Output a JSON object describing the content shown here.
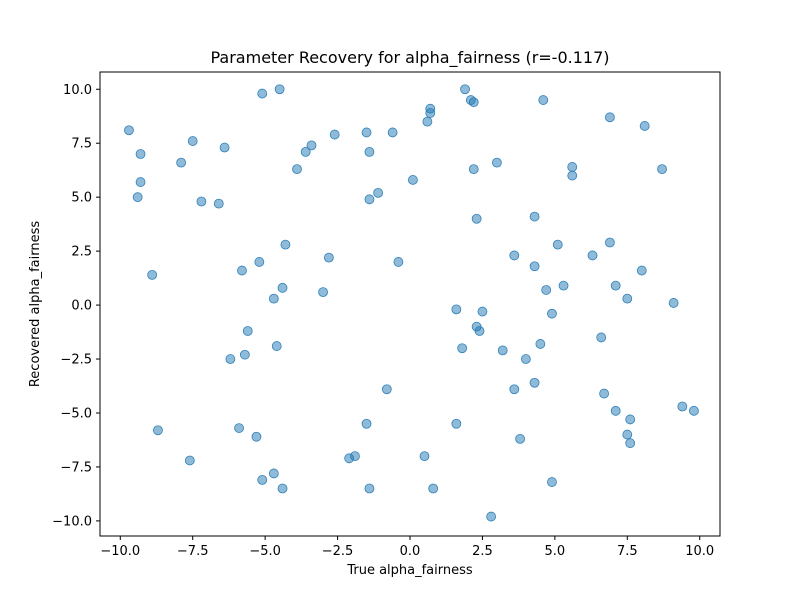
{
  "chart_data": {
    "type": "scatter",
    "title": "Parameter Recovery for alpha_fairness (r=-0.117)",
    "xlabel": "True alpha_fairness",
    "ylabel": "Recovered alpha_fairness",
    "xlim": [
      -10.7,
      10.7
    ],
    "ylim": [
      -10.7,
      10.8
    ],
    "xticks": [
      -10.0,
      -7.5,
      -5.0,
      -2.5,
      0.0,
      2.5,
      5.0,
      7.5,
      10.0
    ],
    "xtick_labels": [
      "−10.0",
      "−7.5",
      "−5.0",
      "−2.5",
      "0.0",
      "2.5",
      "5.0",
      "7.5",
      "10.0"
    ],
    "yticks": [
      -10.0,
      -7.5,
      -5.0,
      -2.5,
      0.0,
      2.5,
      5.0,
      7.5,
      10.0
    ],
    "ytick_labels": [
      "−10.0",
      "−7.5",
      "−5.0",
      "−2.5",
      "0.0",
      "2.5",
      "5.0",
      "7.5",
      "10.0"
    ],
    "grid": false,
    "point_color": "#1f77b4",
    "point_alpha": 0.5,
    "points": [
      {
        "x": -9.7,
        "y": 8.1
      },
      {
        "x": -9.3,
        "y": 7.0
      },
      {
        "x": -9.3,
        "y": 5.7
      },
      {
        "x": -9.4,
        "y": 5.0
      },
      {
        "x": -8.9,
        "y": 1.4
      },
      {
        "x": -8.7,
        "y": -5.8
      },
      {
        "x": -7.9,
        "y": 6.6
      },
      {
        "x": -7.5,
        "y": 7.6
      },
      {
        "x": -7.6,
        "y": -7.2
      },
      {
        "x": -7.2,
        "y": 4.8
      },
      {
        "x": -6.6,
        "y": 4.7
      },
      {
        "x": -6.4,
        "y": 7.3
      },
      {
        "x": -6.2,
        "y": -2.5
      },
      {
        "x": -5.8,
        "y": 1.6
      },
      {
        "x": -5.9,
        "y": -5.7
      },
      {
        "x": -5.7,
        "y": -2.3
      },
      {
        "x": -5.6,
        "y": -1.2
      },
      {
        "x": -5.2,
        "y": 2.0
      },
      {
        "x": -5.3,
        "y": -6.1
      },
      {
        "x": -5.1,
        "y": 9.8
      },
      {
        "x": -5.1,
        "y": -8.1
      },
      {
        "x": -4.7,
        "y": 0.3
      },
      {
        "x": -4.7,
        "y": -7.8
      },
      {
        "x": -4.6,
        "y": -1.9
      },
      {
        "x": -4.5,
        "y": 10.0
      },
      {
        "x": -4.4,
        "y": 0.8
      },
      {
        "x": -4.3,
        "y": 2.8
      },
      {
        "x": -4.4,
        "y": -8.5
      },
      {
        "x": -3.9,
        "y": 6.3
      },
      {
        "x": -3.6,
        "y": 7.1
      },
      {
        "x": -3.4,
        "y": 7.4
      },
      {
        "x": -3.0,
        "y": 0.6
      },
      {
        "x": -2.8,
        "y": 2.2
      },
      {
        "x": -2.6,
        "y": 7.9
      },
      {
        "x": -2.1,
        "y": -7.1
      },
      {
        "x": -1.9,
        "y": -7.0
      },
      {
        "x": -1.5,
        "y": 8.0
      },
      {
        "x": -1.4,
        "y": 7.1
      },
      {
        "x": -1.4,
        "y": 4.9
      },
      {
        "x": -1.5,
        "y": -5.5
      },
      {
        "x": -1.4,
        "y": -8.5
      },
      {
        "x": -1.1,
        "y": 5.2
      },
      {
        "x": -0.8,
        "y": -3.9
      },
      {
        "x": -0.6,
        "y": 8.0
      },
      {
        "x": -0.4,
        "y": 2.0
      },
      {
        "x": 0.1,
        "y": 5.8
      },
      {
        "x": 0.5,
        "y": -7.0
      },
      {
        "x": 0.6,
        "y": 8.5
      },
      {
        "x": 0.7,
        "y": 9.1
      },
      {
        "x": 0.7,
        "y": 8.9
      },
      {
        "x": 0.8,
        "y": -8.5
      },
      {
        "x": 1.6,
        "y": -0.2
      },
      {
        "x": 1.6,
        "y": -5.5
      },
      {
        "x": 1.8,
        "y": -2.0
      },
      {
        "x": 1.9,
        "y": 10.0
      },
      {
        "x": 2.1,
        "y": 9.5
      },
      {
        "x": 2.2,
        "y": 9.4
      },
      {
        "x": 2.2,
        "y": 6.3
      },
      {
        "x": 2.3,
        "y": 4.0
      },
      {
        "x": 2.3,
        "y": -1.0
      },
      {
        "x": 2.4,
        "y": -1.2
      },
      {
        "x": 2.5,
        "y": -0.3
      },
      {
        "x": 2.8,
        "y": -9.8
      },
      {
        "x": 3.0,
        "y": 6.6
      },
      {
        "x": 3.2,
        "y": -2.1
      },
      {
        "x": 3.6,
        "y": 2.3
      },
      {
        "x": 3.6,
        "y": -3.9
      },
      {
        "x": 3.8,
        "y": -6.2
      },
      {
        "x": 4.0,
        "y": -2.5
      },
      {
        "x": 4.3,
        "y": 4.1
      },
      {
        "x": 4.3,
        "y": 1.8
      },
      {
        "x": 4.3,
        "y": -3.6
      },
      {
        "x": 4.5,
        "y": -1.8
      },
      {
        "x": 4.6,
        "y": 9.5
      },
      {
        "x": 4.7,
        "y": 0.7
      },
      {
        "x": 4.9,
        "y": -0.4
      },
      {
        "x": 4.9,
        "y": -8.2
      },
      {
        "x": 5.1,
        "y": 2.8
      },
      {
        "x": 5.3,
        "y": 0.9
      },
      {
        "x": 5.6,
        "y": 6.4
      },
      {
        "x": 5.6,
        "y": 6.0
      },
      {
        "x": 6.3,
        "y": 2.3
      },
      {
        "x": 6.6,
        "y": -1.5
      },
      {
        "x": 6.7,
        "y": -4.1
      },
      {
        "x": 6.9,
        "y": 8.7
      },
      {
        "x": 6.9,
        "y": 2.9
      },
      {
        "x": 7.1,
        "y": 0.9
      },
      {
        "x": 7.1,
        "y": -4.9
      },
      {
        "x": 7.5,
        "y": 0.3
      },
      {
        "x": 7.5,
        "y": -6.0
      },
      {
        "x": 7.6,
        "y": -5.3
      },
      {
        "x": 7.6,
        "y": -6.4
      },
      {
        "x": 8.1,
        "y": 8.3
      },
      {
        "x": 8.0,
        "y": 1.6
      },
      {
        "x": 8.7,
        "y": 6.3
      },
      {
        "x": 9.1,
        "y": 0.1
      },
      {
        "x": 9.4,
        "y": -4.7
      },
      {
        "x": 9.8,
        "y": -4.9
      }
    ]
  }
}
